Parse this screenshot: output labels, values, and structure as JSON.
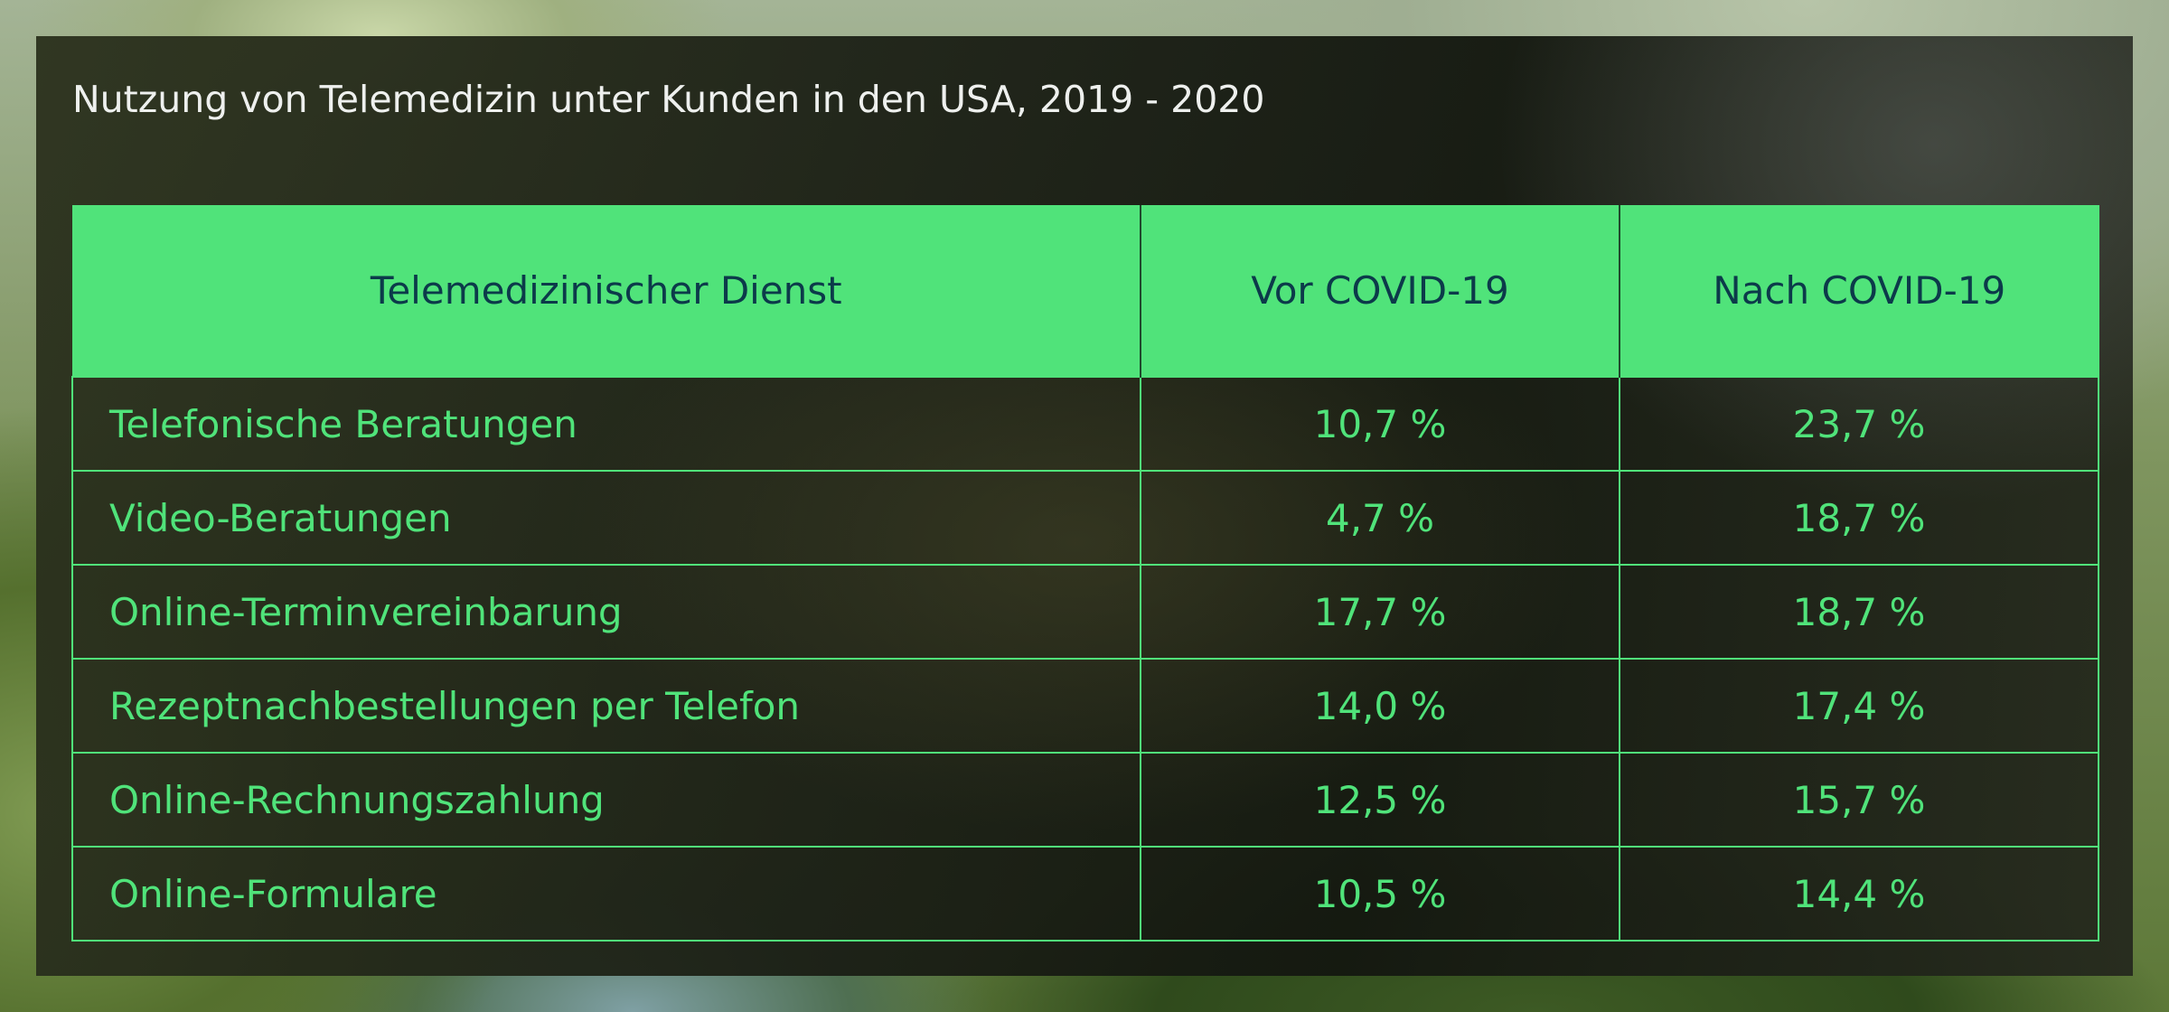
{
  "title": "Nutzung von Telemedizin unter Kunden in den USA, 2019 - 2020",
  "colors": {
    "accent": "#50e37a",
    "header_text": "#0c3a4a",
    "title_text": "#eef0ee"
  },
  "table": {
    "headers": [
      "Telemedizinischer Dienst",
      "Vor COVID-19",
      "Nach COVID-19"
    ],
    "rows": [
      {
        "service": "Telefonische Beratungen",
        "before": "10,7 %",
        "after": "23,7 %"
      },
      {
        "service": "Video-Beratungen",
        "before": "4,7 %",
        "after": "18,7 %"
      },
      {
        "service": "Online-Terminvereinbarung",
        "before": "17,7 %",
        "after": "18,7 %"
      },
      {
        "service": "Rezeptnachbestellungen per Telefon",
        "before": "14,0 %",
        "after": "17,4 %"
      },
      {
        "service": "Online-Rechnungszahlung",
        "before": "12,5 %",
        "after": "15,7 %"
      },
      {
        "service": "Online-Formulare",
        "before": "10,5 %",
        "after": "14,4 %"
      }
    ]
  },
  "chart_data": {
    "type": "table",
    "title": "Nutzung von Telemedizin unter Kunden in den USA, 2019 - 2020",
    "columns": [
      "Telemedizinischer Dienst",
      "Vor COVID-19",
      "Nach COVID-19"
    ],
    "categories": [
      "Telefonische Beratungen",
      "Video-Beratungen",
      "Online-Terminvereinbarung",
      "Rezeptnachbestellungen per Telefon",
      "Online-Rechnungszahlung",
      "Online-Formulare"
    ],
    "series": [
      {
        "name": "Vor COVID-19",
        "values": [
          10.7,
          4.7,
          17.7,
          14.0,
          12.5,
          10.5
        ]
      },
      {
        "name": "Nach COVID-19",
        "values": [
          23.7,
          18.7,
          18.7,
          17.4,
          15.7,
          14.4
        ]
      }
    ],
    "unit": "%"
  }
}
